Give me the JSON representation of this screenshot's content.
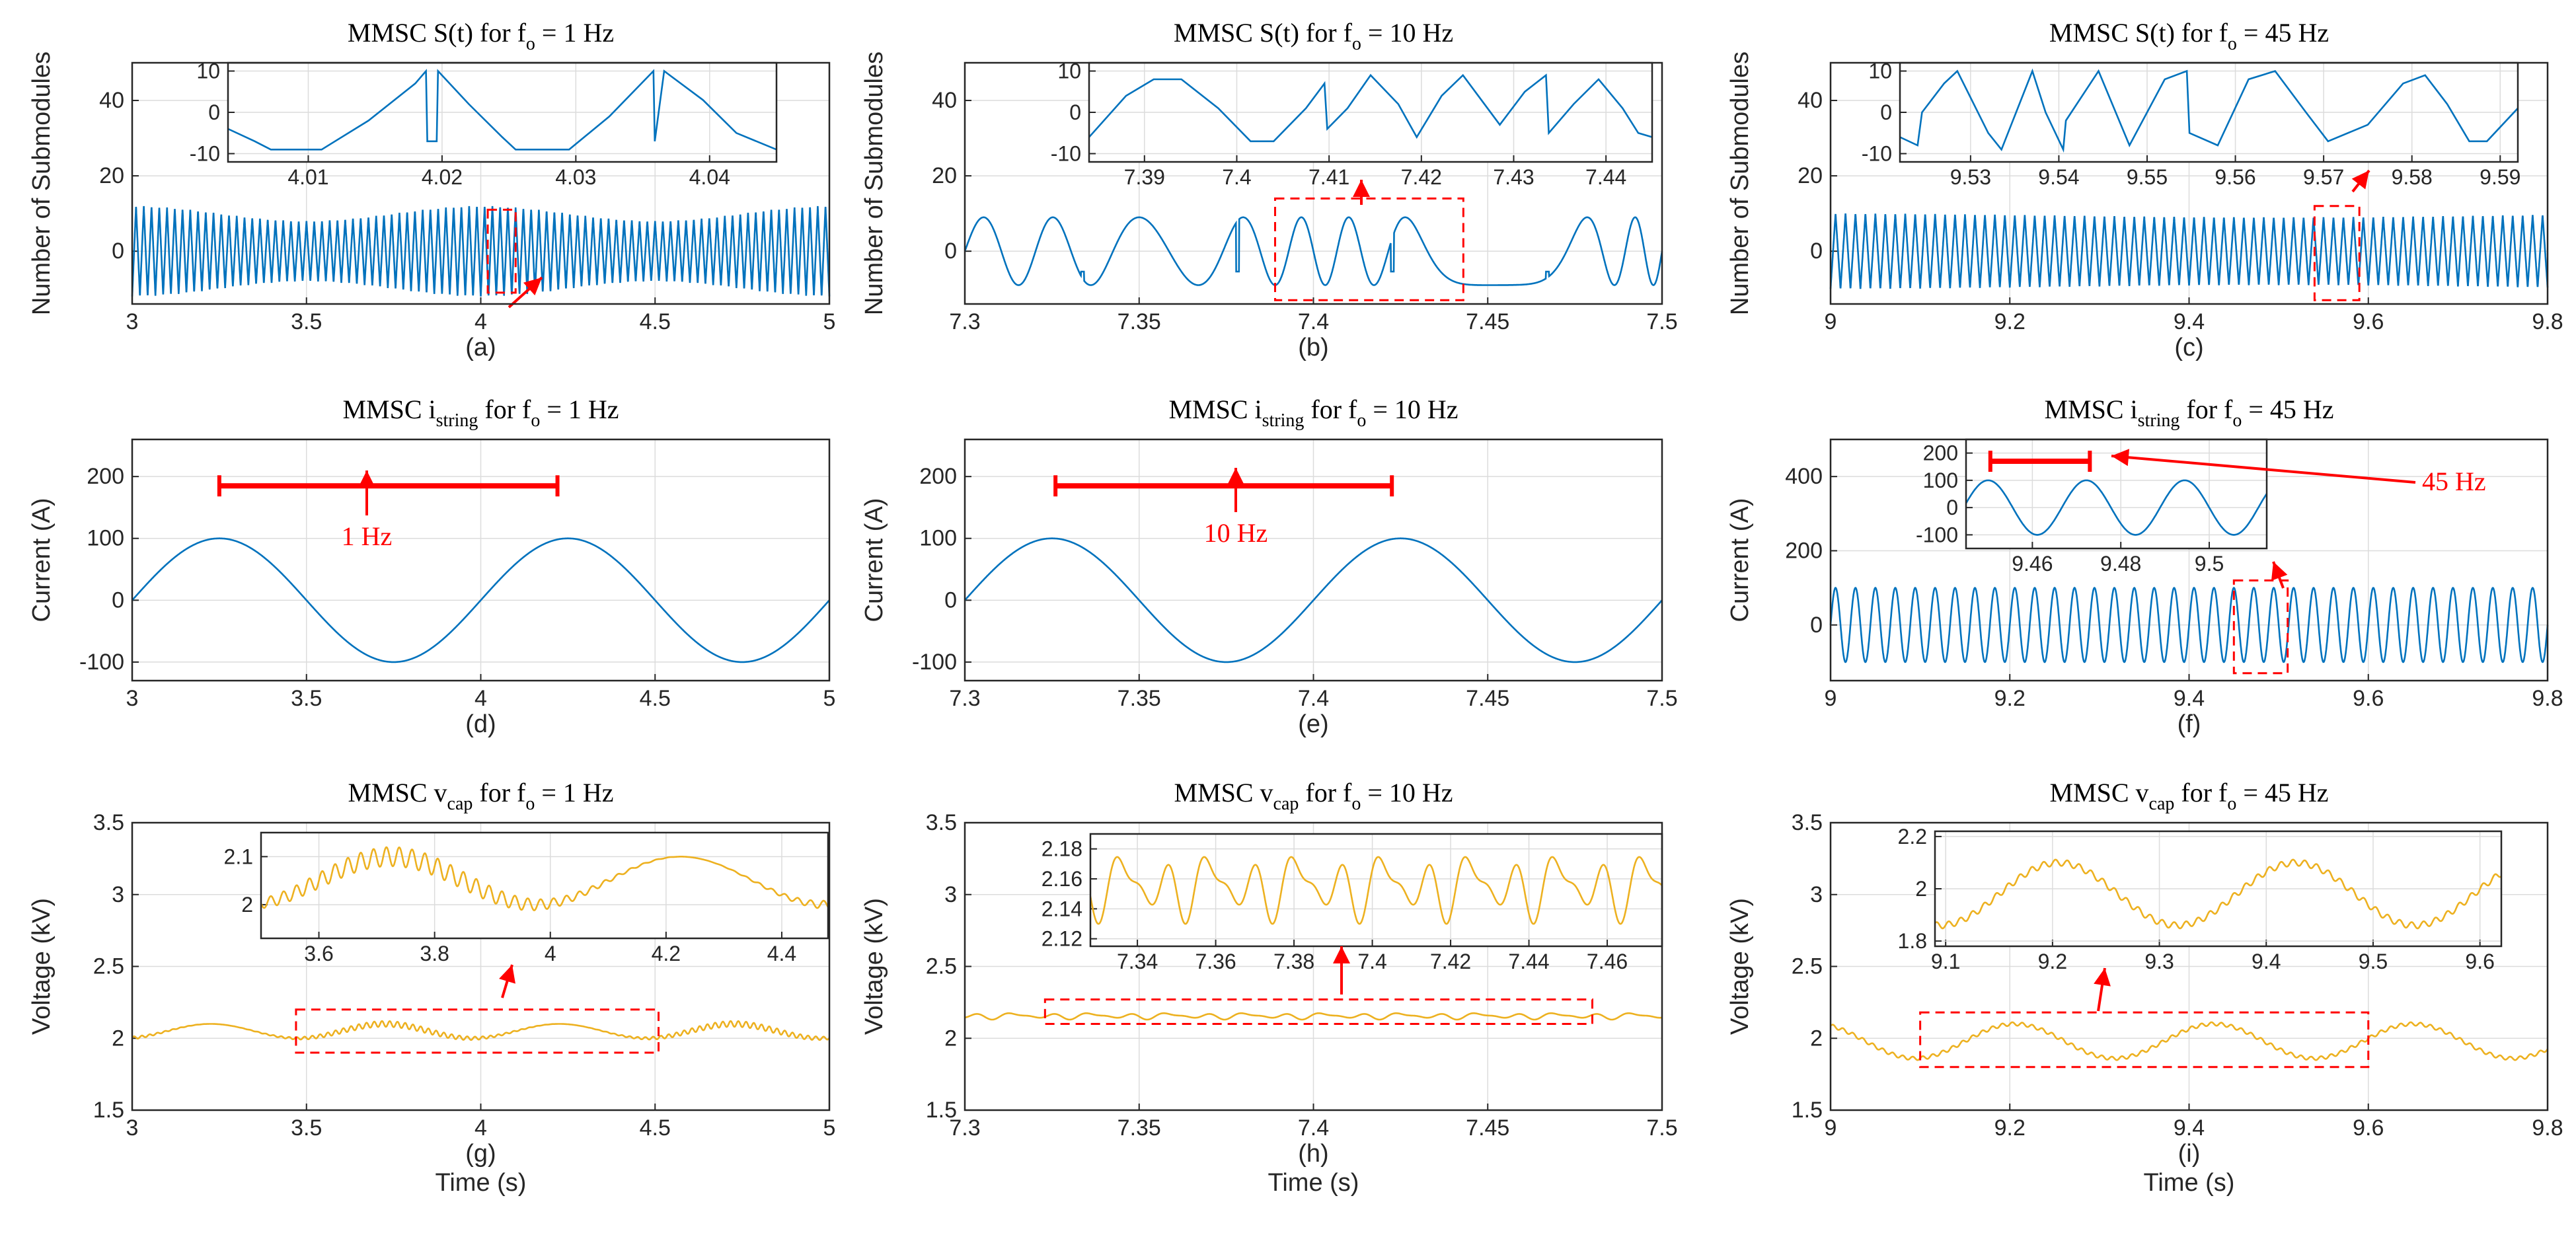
{
  "colors": {
    "series_blue": "#0072BD",
    "series_orange": "#EDB120",
    "annotation": "#FF0000"
  },
  "chart_data": [
    {
      "id": "a",
      "type": "line",
      "panel_label": "(a)",
      "title": {
        "pre": "MMSC S(t) for f",
        "sub": "o",
        "post": " = 1 Hz"
      },
      "xlabel": "",
      "ylabel": "Number of Submodules",
      "xlim": [
        3,
        5
      ],
      "ylim": [
        -14,
        50
      ],
      "xticks": [
        3,
        3.5,
        4,
        4.5,
        5
      ],
      "xtick_labels": [
        "3",
        "3.5",
        "4",
        "4.5",
        "5"
      ],
      "yticks": [
        0,
        20,
        40
      ],
      "ytick_labels": [
        "0",
        "20",
        "40"
      ],
      "series": [
        {
          "name": "S(t)",
          "kind": "dense",
          "color": "series_blue",
          "oscillation_hz": 45,
          "amplitude_min": 8,
          "amplitude_max": 12,
          "envelope_hz": 1
        }
      ],
      "grid": true,
      "highlight": {
        "x": [
          4.02,
          4.1
        ],
        "y": [
          -11,
          11
        ]
      },
      "inset": {
        "xlim": [
          4.004,
          4.045
        ],
        "ylim": [
          -12,
          12
        ],
        "xticks": [
          4.01,
          4.02,
          4.03,
          4.04
        ],
        "xtick_labels": [
          "4.01",
          "4.02",
          "4.03",
          "4.04"
        ],
        "yticks": [
          -10,
          0,
          10
        ],
        "ytick_labels": [
          "-10",
          "0",
          "10"
        ],
        "points": [
          [
            4.004,
            -4
          ],
          [
            4.006,
            -7
          ],
          [
            4.0072,
            -9
          ],
          [
            4.011,
            -9
          ],
          [
            4.0145,
            -2
          ],
          [
            4.018,
            7
          ],
          [
            4.0188,
            10
          ],
          [
            4.0189,
            -7
          ],
          [
            4.0196,
            -7
          ],
          [
            4.0197,
            10
          ],
          [
            4.022,
            2
          ],
          [
            4.0245,
            -6
          ],
          [
            4.0255,
            -9
          ],
          [
            4.0295,
            -9
          ],
          [
            4.0325,
            -1
          ],
          [
            4.0358,
            10
          ],
          [
            4.0359,
            -7
          ],
          [
            4.0366,
            10
          ],
          [
            4.0395,
            3
          ],
          [
            4.042,
            -5
          ],
          [
            4.045,
            -9
          ]
        ]
      }
    },
    {
      "id": "b",
      "type": "line",
      "panel_label": "(b)",
      "title": {
        "pre": "MMSC S(t) for f",
        "sub": "o",
        "post": " = 10 Hz"
      },
      "xlabel": "",
      "ylabel": "Number of Submodules",
      "xlim": [
        7.3,
        7.5
      ],
      "ylim": [
        -14,
        50
      ],
      "xticks": [
        7.3,
        7.35,
        7.4,
        7.45,
        7.5
      ],
      "xtick_labels": [
        "7.3",
        "7.35",
        "7.4",
        "7.45",
        "7.5"
      ],
      "yticks": [
        0,
        20,
        40
      ],
      "ytick_labels": [
        "0",
        "20",
        "40"
      ],
      "series": [
        {
          "name": "S(t)",
          "kind": "sawtooth",
          "color": "series_blue",
          "oscillation_hz": 45,
          "amplitude": 9
        }
      ],
      "grid": true,
      "highlight": {
        "x": [
          7.389,
          7.443
        ],
        "y": [
          -13,
          14
        ]
      },
      "inset": {
        "xlim": [
          7.384,
          7.445
        ],
        "ylim": [
          -12,
          12
        ],
        "xticks": [
          7.39,
          7.4,
          7.41,
          7.42,
          7.43,
          7.44
        ],
        "xtick_labels": [
          "7.39",
          "7.4",
          "7.41",
          "7.42",
          "7.43",
          "7.44"
        ],
        "yticks": [
          -10,
          0,
          10
        ],
        "ytick_labels": [
          "-10",
          "0",
          "10"
        ],
        "points": [
          [
            7.384,
            -6
          ],
          [
            7.388,
            4
          ],
          [
            7.391,
            8
          ],
          [
            7.394,
            8
          ],
          [
            7.398,
            1
          ],
          [
            7.4015,
            -7
          ],
          [
            7.404,
            -7
          ],
          [
            7.4075,
            1
          ],
          [
            7.4095,
            7
          ],
          [
            7.4098,
            -4
          ],
          [
            7.412,
            1
          ],
          [
            7.4145,
            9
          ],
          [
            7.4175,
            2
          ],
          [
            7.4195,
            -6
          ],
          [
            7.4222,
            4
          ],
          [
            7.4245,
            9
          ],
          [
            7.4265,
            3
          ],
          [
            7.4285,
            -3
          ],
          [
            7.4312,
            5
          ],
          [
            7.4335,
            9
          ],
          [
            7.4338,
            -5
          ],
          [
            7.4365,
            2
          ],
          [
            7.4392,
            8
          ],
          [
            7.4418,
            1
          ],
          [
            7.4435,
            -5
          ],
          [
            7.445,
            -6
          ]
        ]
      }
    },
    {
      "id": "c",
      "type": "line",
      "panel_label": "(c)",
      "title": {
        "pre": "MMSC S(t) for f",
        "sub": "o",
        "post": " = 45 Hz"
      },
      "xlabel": "",
      "ylabel": "Number of Submodules",
      "xlim": [
        9,
        9.8
      ],
      "ylim": [
        -14,
        50
      ],
      "xticks": [
        9,
        9.2,
        9.4,
        9.6,
        9.8
      ],
      "xtick_labels": [
        "9",
        "9.2",
        "9.4",
        "9.6",
        "9.8"
      ],
      "yticks": [
        0,
        20,
        40
      ],
      "ytick_labels": [
        "0",
        "20",
        "40"
      ],
      "series": [
        {
          "name": "S(t)",
          "kind": "dense",
          "color": "series_blue",
          "oscillation_hz": 90,
          "amplitude_min": 9,
          "amplitude_max": 10,
          "envelope_hz": 1
        }
      ],
      "grid": true,
      "highlight": {
        "x": [
          9.54,
          9.59
        ],
        "y": [
          -13,
          12
        ]
      },
      "inset": {
        "xlim": [
          9.522,
          9.592
        ],
        "ylim": [
          -12,
          12
        ],
        "xticks": [
          9.53,
          9.54,
          9.55,
          9.56,
          9.57,
          9.58,
          9.59
        ],
        "xtick_labels": [
          "9.53",
          "9.54",
          "9.55",
          "9.56",
          "9.57",
          "9.58",
          "9.59"
        ],
        "yticks": [
          -10,
          0,
          10
        ],
        "ytick_labels": [
          "-10",
          "0",
          "10"
        ],
        "points": [
          [
            9.522,
            -6
          ],
          [
            9.524,
            -8
          ],
          [
            9.5245,
            0
          ],
          [
            9.527,
            7
          ],
          [
            9.5285,
            10
          ],
          [
            9.532,
            -5
          ],
          [
            9.5335,
            -9
          ],
          [
            9.537,
            10
          ],
          [
            9.5385,
            0
          ],
          [
            9.5405,
            -9
          ],
          [
            9.5408,
            -2
          ],
          [
            9.5445,
            10
          ],
          [
            9.548,
            -8
          ],
          [
            9.552,
            8
          ],
          [
            9.5545,
            10
          ],
          [
            9.5548,
            -5
          ],
          [
            9.558,
            -8
          ],
          [
            9.5615,
            8
          ],
          [
            9.5645,
            10
          ],
          [
            9.568,
            0
          ],
          [
            9.5705,
            -7
          ],
          [
            9.575,
            -3
          ],
          [
            9.579,
            7
          ],
          [
            9.5815,
            9
          ],
          [
            9.584,
            2
          ],
          [
            9.5865,
            -7
          ],
          [
            9.5885,
            -7
          ],
          [
            9.592,
            1
          ]
        ]
      }
    },
    {
      "id": "d",
      "type": "line",
      "panel_label": "(d)",
      "title": {
        "pre": "MMSC i",
        "sub": "string",
        "post": " for f",
        "sub2": "o",
        "post2": " = 1 Hz"
      },
      "xlabel": "",
      "ylabel": "Current (A)",
      "xlim": [
        3,
        5
      ],
      "ylim": [
        -130,
        260
      ],
      "xticks": [
        3,
        3.5,
        4,
        4.5,
        5
      ],
      "xtick_labels": [
        "3",
        "3.5",
        "4",
        "4.5",
        "5"
      ],
      "yticks": [
        -100,
        0,
        100,
        200
      ],
      "ytick_labels": [
        "-100",
        "0",
        "100",
        "200"
      ],
      "series": [
        {
          "name": "i_string",
          "kind": "sine",
          "color": "series_blue",
          "frequency_hz": 1,
          "amplitude": 100,
          "zero_crossing_at": 3
        }
      ],
      "grid": true,
      "period_marker": {
        "x": [
          3.25,
          4.22
        ],
        "y": 185,
        "label": "1 Hz"
      }
    },
    {
      "id": "e",
      "type": "line",
      "panel_label": "(e)",
      "title": {
        "pre": "MMSC i",
        "sub": "string",
        "post": " for f",
        "sub2": "o",
        "post2": " = 10 Hz"
      },
      "xlabel": "",
      "ylabel": "Current (A)",
      "xlim": [
        7.3,
        7.5
      ],
      "ylim": [
        -130,
        260
      ],
      "xticks": [
        7.3,
        7.35,
        7.4,
        7.45,
        7.5
      ],
      "xtick_labels": [
        "7.3",
        "7.35",
        "7.4",
        "7.45",
        "7.5"
      ],
      "yticks": [
        -100,
        0,
        100,
        200
      ],
      "ytick_labels": [
        "-100",
        "0",
        "100",
        "200"
      ],
      "series": [
        {
          "name": "i_string",
          "kind": "sine",
          "color": "series_blue",
          "frequency_hz": 10,
          "amplitude": 100,
          "zero_crossing_at": 7.3
        }
      ],
      "grid": true,
      "period_marker": {
        "x": [
          7.326,
          7.4225
        ],
        "y": 185,
        "label": "10 Hz"
      }
    },
    {
      "id": "f",
      "type": "line",
      "panel_label": "(f)",
      "title": {
        "pre": "MMSC i",
        "sub": "string",
        "post": " for f",
        "sub2": "o",
        "post2": " = 45 Hz"
      },
      "xlabel": "",
      "ylabel": "Current (A)",
      "xlim": [
        9,
        9.8
      ],
      "ylim": [
        -150,
        500
      ],
      "xticks": [
        9,
        9.2,
        9.4,
        9.6,
        9.8
      ],
      "xtick_labels": [
        "9",
        "9.2",
        "9.4",
        "9.6",
        "9.8"
      ],
      "yticks": [
        0,
        200,
        400
      ],
      "ytick_labels": [
        "0",
        "200",
        "400"
      ],
      "series": [
        {
          "name": "i_string",
          "kind": "sine",
          "color": "series_blue",
          "frequency_hz": 45,
          "amplitude": 100,
          "zero_crossing_at": 9
        }
      ],
      "grid": true,
      "highlight": {
        "x": [
          9.45,
          9.51
        ],
        "y": [
          -130,
          120
        ]
      },
      "inset": {
        "xlim": [
          9.445,
          9.513
        ],
        "ylim": [
          -150,
          250
        ],
        "xticks": [
          9.46,
          9.48,
          9.5
        ],
        "xtick_labels": [
          "9.46",
          "9.48",
          "9.5"
        ],
        "yticks": [
          -100,
          0,
          100,
          200
        ],
        "ytick_labels": [
          "-100",
          "0",
          "100",
          "200"
        ],
        "sine": {
          "frequency_hz": 45,
          "amplitude": 100,
          "zero_crossing_at": 9
        },
        "period_marker": {
          "x": [
            9.4505,
            9.473
          ],
          "y": 170,
          "label": "45 Hz"
        }
      }
    },
    {
      "id": "g",
      "type": "line",
      "panel_label": "(g)",
      "title": {
        "pre": "MMSC v",
        "sub": "cap",
        "post": " for f",
        "sub2": "o",
        "post2": " = 1 Hz"
      },
      "xlabel": "Time (s)",
      "ylabel": "Voltage (kV)",
      "xlim": [
        3,
        5
      ],
      "ylim": [
        1.5,
        3.5
      ],
      "xticks": [
        3,
        3.5,
        4,
        4.5,
        5
      ],
      "xtick_labels": [
        "3",
        "3.5",
        "4",
        "4.5",
        "5"
      ],
      "yticks": [
        1.5,
        2,
        2.5,
        3,
        3.5
      ],
      "ytick_labels": [
        "1.5",
        "2",
        "2.5",
        "3",
        "3.5"
      ],
      "series": [
        {
          "name": "v_cap",
          "kind": "vcap1",
          "color": "series_orange",
          "mean": 2.05,
          "slow_amplitude": 0.05,
          "slow_hz": 2,
          "ripple_amplitude": 0.02,
          "ripple_hz": 45
        }
      ],
      "grid": true,
      "highlight": {
        "x": [
          3.47,
          4.51
        ],
        "y": [
          1.9,
          2.2
        ]
      },
      "inset": {
        "xlim": [
          3.5,
          4.48
        ],
        "ylim": [
          1.93,
          2.15
        ],
        "xticks": [
          3.6,
          3.8,
          4,
          4.2,
          4.4
        ],
        "xtick_labels": [
          "3.6",
          "3.8",
          "4",
          "4.2",
          "4.4"
        ],
        "yticks": [
          2,
          2.1
        ],
        "ytick_labels": [
          "2",
          "2.1"
        ],
        "series_kind": "vcap1"
      }
    },
    {
      "id": "h",
      "type": "line",
      "panel_label": "(h)",
      "title": {
        "pre": "MMSC v",
        "sub": "cap",
        "post": " for f",
        "sub2": "o",
        "post2": " = 10 Hz"
      },
      "xlabel": "Time (s)",
      "ylabel": "Voltage (kV)",
      "xlim": [
        7.3,
        7.5
      ],
      "ylim": [
        1.5,
        3.5
      ],
      "xticks": [
        7.3,
        7.35,
        7.4,
        7.45,
        7.5
      ],
      "xtick_labels": [
        "7.3",
        "7.35",
        "7.4",
        "7.45",
        "7.5"
      ],
      "yticks": [
        1.5,
        2,
        2.5,
        3,
        3.5
      ],
      "ytick_labels": [
        "1.5",
        "2",
        "2.5",
        "3",
        "3.5"
      ],
      "series": [
        {
          "name": "v_cap",
          "kind": "vcap2",
          "color": "series_orange",
          "mean": 2.155,
          "ripple_amplitude": 0.025
        }
      ],
      "grid": true,
      "highlight": {
        "x": [
          7.323,
          7.48
        ],
        "y": [
          2.1,
          2.27
        ]
      },
      "inset": {
        "xlim": [
          7.328,
          7.474
        ],
        "ylim": [
          2.115,
          2.19
        ],
        "xticks": [
          7.34,
          7.36,
          7.38,
          7.4,
          7.42,
          7.44,
          7.46
        ],
        "xtick_labels": [
          "7.34",
          "7.36",
          "7.38",
          "7.4",
          "7.42",
          "7.44",
          "7.46"
        ],
        "yticks": [
          2.12,
          2.14,
          2.16,
          2.18
        ],
        "ytick_labels": [
          "2.12",
          "2.14",
          "2.16",
          "2.18"
        ],
        "series_kind": "vcap2"
      }
    },
    {
      "id": "i",
      "type": "line",
      "panel_label": "(i)",
      "title": {
        "pre": "MMSC v",
        "sub": "cap",
        "post": " for f",
        "sub2": "o",
        "post2": " = 45 Hz"
      },
      "xlabel": "Time (s)",
      "ylabel": "Voltage (kV)",
      "xlim": [
        9,
        9.8
      ],
      "ylim": [
        1.5,
        3.5
      ],
      "xticks": [
        9,
        9.2,
        9.4,
        9.6,
        9.8
      ],
      "xtick_labels": [
        "9",
        "9.2",
        "9.4",
        "9.6",
        "9.8"
      ],
      "yticks": [
        1.5,
        2,
        2.5,
        3,
        3.5
      ],
      "ytick_labels": [
        "1.5",
        "2",
        "2.5",
        "3",
        "3.5"
      ],
      "series": [
        {
          "name": "v_cap",
          "kind": "vcap3",
          "color": "series_orange",
          "mean": 1.98,
          "slow_amplitude": 0.12,
          "slow_hz": 4.5
        }
      ],
      "grid": true,
      "highlight": {
        "x": [
          9.1,
          9.6
        ],
        "y": [
          1.8,
          2.18
        ]
      },
      "inset": {
        "xlim": [
          9.09,
          9.62
        ],
        "ylim": [
          1.78,
          2.22
        ],
        "xticks": [
          9.1,
          9.2,
          9.3,
          9.4,
          9.5,
          9.6
        ],
        "xtick_labels": [
          "9.1",
          "9.2",
          "9.3",
          "9.4",
          "9.5",
          "9.6"
        ],
        "yticks": [
          1.8,
          2,
          2.2
        ],
        "ytick_labels": [
          "1.8",
          "2",
          "2.2"
        ],
        "series_kind": "vcap3"
      }
    }
  ]
}
